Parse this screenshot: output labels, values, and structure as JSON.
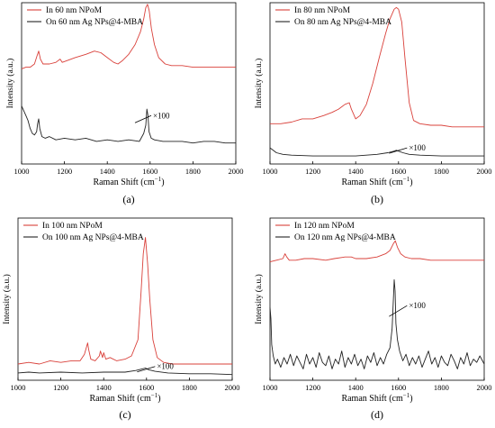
{
  "colors": {
    "red_series": "#d9403a",
    "black_series": "#222222",
    "axis": "#000000"
  },
  "chart_data": [
    {
      "type": "line",
      "panel_label": "(a)",
      "xlabel_main": "Raman Shift (cm",
      "xlabel_sup": "−1",
      "xlabel_close": ")",
      "ylabel": "Intensity (a.u.)",
      "xlim": [
        1000,
        2000
      ],
      "ylim": [
        0,
        1
      ],
      "y_ticks_shown": false,
      "x_ticks": [
        1000,
        1200,
        1400,
        1600,
        1800,
        2000
      ],
      "legend_position": "top-left",
      "series": [
        {
          "name": "In 60 nm NPoM",
          "color": "#d9403a",
          "x": [
            1000,
            1020,
            1040,
            1060,
            1072,
            1080,
            1088,
            1100,
            1130,
            1160,
            1180,
            1190,
            1210,
            1250,
            1300,
            1340,
            1370,
            1400,
            1430,
            1450,
            1470,
            1500,
            1530,
            1555,
            1570,
            1580,
            1588,
            1596,
            1606,
            1620,
            1640,
            1670,
            1700,
            1750,
            1800,
            1850,
            1900,
            1950,
            2000
          ],
          "y": [
            0.59,
            0.6,
            0.6,
            0.62,
            0.67,
            0.7,
            0.65,
            0.62,
            0.62,
            0.63,
            0.65,
            0.63,
            0.64,
            0.66,
            0.68,
            0.7,
            0.69,
            0.66,
            0.63,
            0.62,
            0.64,
            0.68,
            0.74,
            0.82,
            0.9,
            0.97,
            0.99,
            0.95,
            0.84,
            0.74,
            0.66,
            0.62,
            0.61,
            0.61,
            0.6,
            0.6,
            0.6,
            0.6,
            0.6
          ]
        },
        {
          "name": "On 60 nm Ag NPs@4-MBA",
          "color": "#222222",
          "x": [
            1000,
            1010,
            1020,
            1030,
            1040,
            1050,
            1060,
            1070,
            1075,
            1080,
            1085,
            1095,
            1110,
            1130,
            1160,
            1200,
            1250,
            1300,
            1350,
            1400,
            1450,
            1500,
            1550,
            1570,
            1580,
            1585,
            1590,
            1595,
            1605,
            1620,
            1660,
            1700,
            1750,
            1800,
            1850,
            1900,
            1950,
            2000
          ],
          "y": [
            0.36,
            0.33,
            0.3,
            0.27,
            0.22,
            0.19,
            0.18,
            0.2,
            0.25,
            0.28,
            0.22,
            0.17,
            0.16,
            0.17,
            0.15,
            0.16,
            0.15,
            0.16,
            0.14,
            0.15,
            0.14,
            0.15,
            0.14,
            0.19,
            0.24,
            0.34,
            0.3,
            0.2,
            0.16,
            0.15,
            0.14,
            0.14,
            0.14,
            0.13,
            0.14,
            0.14,
            0.13,
            0.13
          ]
        }
      ],
      "annotation": {
        "text": "×100",
        "x": 1605,
        "y": 0.3
      }
    },
    {
      "type": "line",
      "panel_label": "(b)",
      "xlabel_main": "Raman Shift (cm",
      "xlabel_sup": "−1",
      "xlabel_close": ")",
      "ylabel": "Intensity (a.u.)",
      "xlim": [
        1000,
        2000
      ],
      "ylim": [
        0,
        1
      ],
      "y_ticks_shown": false,
      "x_ticks": [
        1000,
        1200,
        1400,
        1600,
        1800,
        2000
      ],
      "legend_position": "top-left",
      "series": [
        {
          "name": "In 80 nm NPoM",
          "color": "#d9403a",
          "x": [
            1000,
            1050,
            1100,
            1150,
            1200,
            1250,
            1290,
            1320,
            1350,
            1370,
            1380,
            1400,
            1420,
            1450,
            1480,
            1510,
            1540,
            1560,
            1580,
            1590,
            1600,
            1615,
            1630,
            1650,
            1670,
            1700,
            1750,
            1800,
            1850,
            1900,
            1950,
            2000
          ],
          "y": [
            0.25,
            0.25,
            0.26,
            0.28,
            0.28,
            0.3,
            0.32,
            0.34,
            0.37,
            0.38,
            0.34,
            0.28,
            0.3,
            0.37,
            0.5,
            0.66,
            0.81,
            0.9,
            0.96,
            0.97,
            0.96,
            0.88,
            0.66,
            0.38,
            0.27,
            0.25,
            0.24,
            0.24,
            0.23,
            0.23,
            0.23,
            0.23
          ]
        },
        {
          "name": "On 80 nm Ag NPs@4-MBA",
          "color": "#222222",
          "x": [
            1000,
            1010,
            1030,
            1060,
            1100,
            1200,
            1300,
            1400,
            1450,
            1500,
            1550,
            1580,
            1590,
            1600,
            1620,
            1650,
            1700,
            1800,
            1900,
            2000
          ],
          "y": [
            0.1,
            0.09,
            0.07,
            0.06,
            0.055,
            0.05,
            0.05,
            0.05,
            0.055,
            0.06,
            0.07,
            0.08,
            0.085,
            0.08,
            0.07,
            0.06,
            0.055,
            0.05,
            0.05,
            0.05
          ]
        }
      ],
      "annotation": {
        "text": "×100",
        "x": 1640,
        "y": 0.1
      }
    },
    {
      "type": "line",
      "panel_label": "(c)",
      "xlabel_main": "Raman Shift (cm",
      "xlabel_sup": "−1",
      "xlabel_close": ")",
      "ylabel": "Intensity (a.u.)",
      "xlim": [
        1000,
        2000
      ],
      "ylim": [
        0,
        1
      ],
      "y_ticks_shown": false,
      "x_ticks": [
        1000,
        1200,
        1400,
        1600,
        1800,
        2000
      ],
      "legend_position": "top-left",
      "series": [
        {
          "name": "In 100 nm NPoM",
          "color": "#d9403a",
          "x": [
            1000,
            1050,
            1100,
            1150,
            1200,
            1250,
            1290,
            1310,
            1325,
            1330,
            1340,
            1360,
            1380,
            1385,
            1395,
            1400,
            1410,
            1430,
            1460,
            1500,
            1530,
            1560,
            1575,
            1585,
            1595,
            1605,
            1615,
            1630,
            1650,
            1680,
            1720,
            1800,
            1900,
            2000
          ],
          "y": [
            0.1,
            0.11,
            0.1,
            0.12,
            0.11,
            0.12,
            0.12,
            0.16,
            0.23,
            0.19,
            0.13,
            0.12,
            0.15,
            0.18,
            0.14,
            0.17,
            0.13,
            0.14,
            0.12,
            0.13,
            0.15,
            0.25,
            0.55,
            0.78,
            0.88,
            0.72,
            0.5,
            0.25,
            0.14,
            0.11,
            0.1,
            0.1,
            0.1,
            0.1
          ]
        },
        {
          "name": "On 100 nm Ag NPs@4-MBA",
          "color": "#222222",
          "x": [
            1000,
            1050,
            1100,
            1200,
            1300,
            1400,
            1500,
            1550,
            1580,
            1595,
            1610,
            1640,
            1700,
            1800,
            1900,
            2000
          ],
          "y": [
            0.045,
            0.05,
            0.045,
            0.05,
            0.045,
            0.05,
            0.05,
            0.06,
            0.07,
            0.075,
            0.065,
            0.055,
            0.045,
            0.04,
            0.04,
            0.035
          ]
        }
      ],
      "annotation": {
        "text": "×100",
        "x": 1640,
        "y": 0.085
      }
    },
    {
      "type": "line",
      "panel_label": "(d)",
      "xlabel_main": "Raman Shift (cm",
      "xlabel_sup": "−1",
      "xlabel_close": ")",
      "ylabel": "Intensity (a.u.)",
      "xlim": [
        1000,
        2000
      ],
      "ylim": [
        0,
        1
      ],
      "y_ticks_shown": false,
      "x_ticks": [
        1000,
        1200,
        1400,
        1600,
        1800,
        2000
      ],
      "legend_position": "top-left",
      "series": [
        {
          "name": "In 120 nm NPoM",
          "color": "#d9403a",
          "x": [
            1000,
            1030,
            1060,
            1070,
            1078,
            1090,
            1120,
            1160,
            1200,
            1260,
            1300,
            1350,
            1380,
            1400,
            1450,
            1500,
            1540,
            1560,
            1575,
            1585,
            1595,
            1610,
            1630,
            1660,
            1700,
            1750,
            1800,
            1850,
            1900,
            1950,
            2000
          ],
          "y": [
            0.73,
            0.74,
            0.75,
            0.78,
            0.76,
            0.74,
            0.74,
            0.75,
            0.75,
            0.74,
            0.75,
            0.76,
            0.76,
            0.75,
            0.75,
            0.76,
            0.78,
            0.8,
            0.84,
            0.86,
            0.82,
            0.78,
            0.76,
            0.75,
            0.75,
            0.74,
            0.74,
            0.74,
            0.74,
            0.74,
            0.74
          ]
        },
        {
          "name": "On 120 nm Ag NPs@4-MBA",
          "color": "#222222",
          "x": [
            1000,
            1004,
            1008,
            1015,
            1025,
            1035,
            1050,
            1065,
            1080,
            1095,
            1110,
            1125,
            1140,
            1155,
            1170,
            1185,
            1200,
            1215,
            1230,
            1245,
            1260,
            1275,
            1290,
            1305,
            1320,
            1335,
            1350,
            1365,
            1380,
            1395,
            1410,
            1425,
            1440,
            1455,
            1470,
            1485,
            1500,
            1515,
            1530,
            1545,
            1560,
            1570,
            1576,
            1580,
            1584,
            1588,
            1595,
            1605,
            1620,
            1635,
            1650,
            1665,
            1680,
            1695,
            1710,
            1725,
            1740,
            1755,
            1770,
            1785,
            1800,
            1815,
            1830,
            1845,
            1860,
            1875,
            1890,
            1905,
            1920,
            1935,
            1950,
            1965,
            1980,
            2000
          ],
          "y": [
            0.45,
            0.38,
            0.22,
            0.15,
            0.1,
            0.13,
            0.08,
            0.14,
            0.1,
            0.16,
            0.09,
            0.15,
            0.11,
            0.07,
            0.16,
            0.1,
            0.14,
            0.08,
            0.17,
            0.11,
            0.09,
            0.15,
            0.07,
            0.13,
            0.1,
            0.18,
            0.08,
            0.14,
            0.1,
            0.16,
            0.09,
            0.13,
            0.07,
            0.15,
            0.11,
            0.17,
            0.09,
            0.14,
            0.1,
            0.16,
            0.2,
            0.32,
            0.5,
            0.62,
            0.55,
            0.35,
            0.25,
            0.18,
            0.12,
            0.16,
            0.09,
            0.14,
            0.1,
            0.15,
            0.08,
            0.13,
            0.18,
            0.1,
            0.14,
            0.08,
            0.15,
            0.11,
            0.09,
            0.16,
            0.12,
            0.07,
            0.14,
            0.1,
            0.17,
            0.09,
            0.13,
            0.11,
            0.15,
            0.1
          ]
        }
      ],
      "annotation": {
        "text": "×100",
        "x": 1640,
        "y": 0.46
      }
    }
  ]
}
